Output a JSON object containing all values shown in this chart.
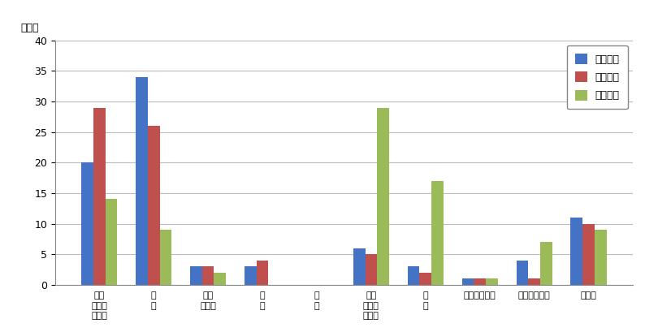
{
  "categories": [
    "就職\n・転職\n・転業",
    "転\n勤",
    "退職\n・廃業",
    "就\n学",
    "卒\n業",
    "結婚\n・離婚\n・縁組",
    "住\n宅",
    "交通の利便性",
    "生活の利便性",
    "その他"
  ],
  "series": [
    {
      "name": "県外転入",
      "color": "#4472C4",
      "values": [
        20,
        34,
        3,
        3,
        0,
        6,
        3,
        1,
        4,
        11
      ]
    },
    {
      "name": "県外転出",
      "color": "#C0504D",
      "values": [
        29,
        26,
        3,
        4,
        0,
        5,
        2,
        1,
        1,
        10
      ]
    },
    {
      "name": "県内移動",
      "color": "#9BBB59",
      "values": [
        14,
        9,
        2,
        0,
        0,
        29,
        17,
        1,
        7,
        9
      ]
    }
  ],
  "ylabel": "（人）",
  "ylim": [
    0,
    40
  ],
  "yticks": [
    0,
    5,
    10,
    15,
    20,
    25,
    30,
    35,
    40
  ],
  "background_color": "#FFFFFF",
  "grid_color": "#BBBBBB",
  "bar_width": 0.22,
  "figsize": [
    7.94,
    4.09
  ],
  "dpi": 100
}
